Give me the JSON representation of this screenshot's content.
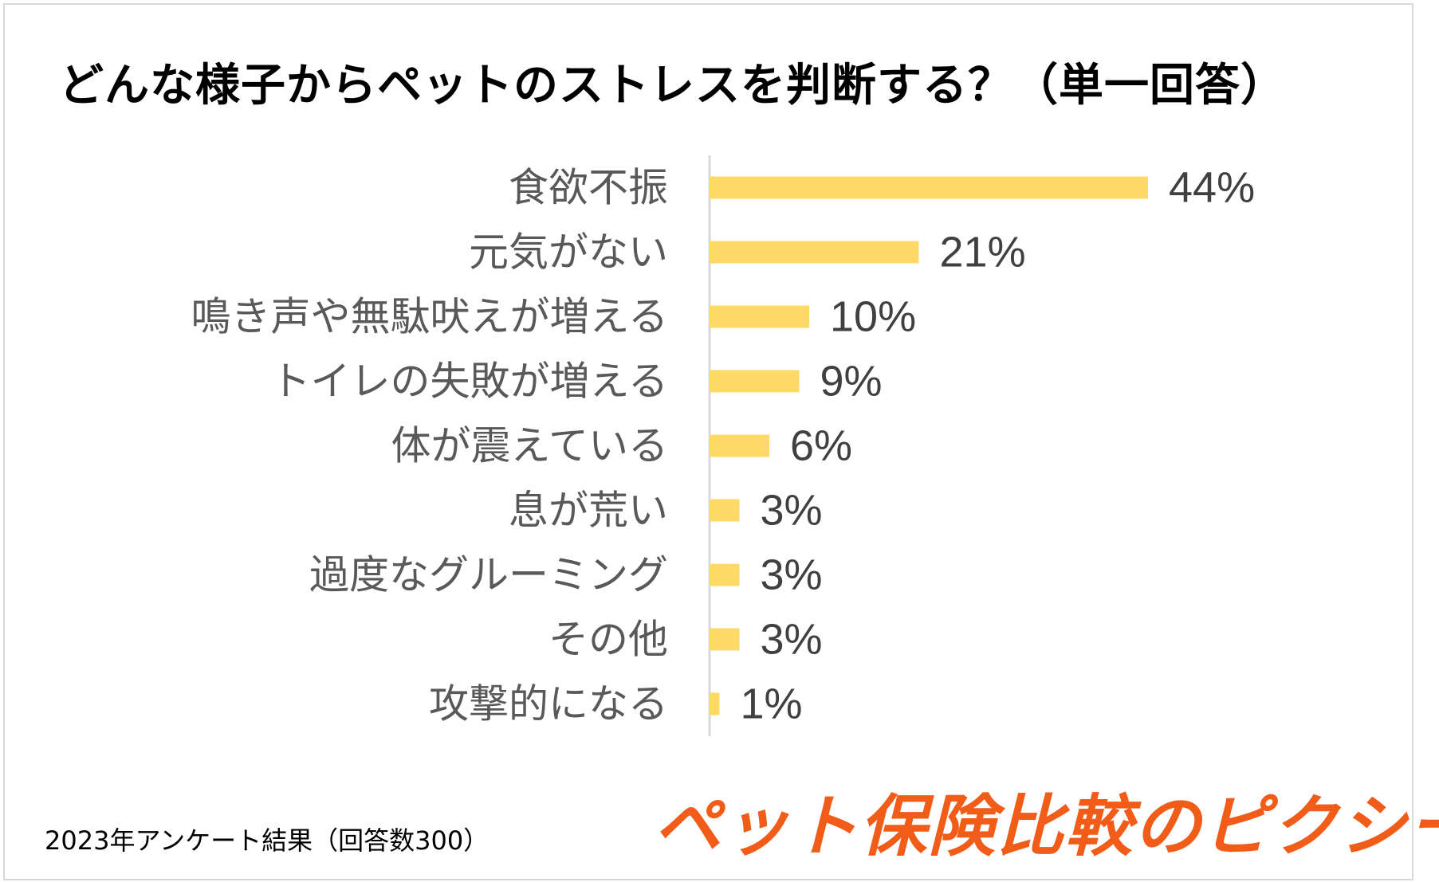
{
  "title": "どんな様子からペットのストレスを判断する？（単一回答）",
  "footnote": "2023年アンケート結果（回答数300）",
  "brand": {
    "name": "ペット保険比較のピクシー",
    "color": "#f25c19"
  },
  "colors": {
    "bar": "#ffd966",
    "axis": "#d9d9d9"
  },
  "chart_data": {
    "type": "bar",
    "orientation": "horizontal",
    "title": "どんな様子からペットのストレスを判断する？（単一回答）",
    "categories": [
      "食欲不振",
      "元気がない",
      "鳴き声や無駄吠えが増える",
      "トイレの失敗が増える",
      "体が震えている",
      "息が荒い",
      "過度なグルーミング",
      "その他",
      "攻撃的になる"
    ],
    "values": [
      44,
      21,
      10,
      9,
      6,
      3,
      3,
      3,
      1
    ],
    "value_labels": [
      "44%",
      "21%",
      "10%",
      "9%",
      "6%",
      "3%",
      "3%",
      "3%",
      "1%"
    ],
    "unit": "%",
    "xlim": [
      0,
      50
    ],
    "grid": false,
    "legend": "none"
  }
}
